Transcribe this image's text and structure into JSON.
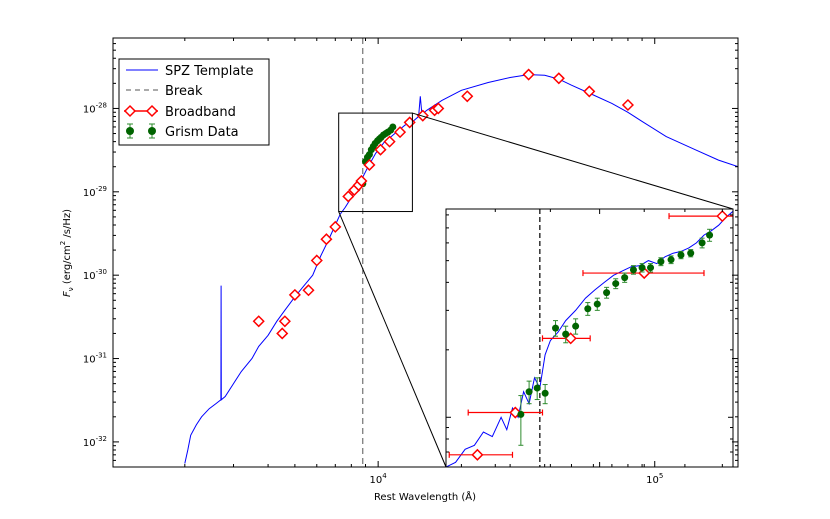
{
  "colors": {
    "template": "#0000ff",
    "broadband": "#ff0000",
    "grism_fill": "#006400",
    "grism_err": "#2e8b2e",
    "break": "#555555",
    "frame": "#000000"
  },
  "chart_data": {
    "type": "scatter",
    "title": "",
    "xlabel": "Rest Wavelength (Å)",
    "ylabel_parts": {
      "pre": "F",
      "sub": "ν",
      "mid": " (erg/cm",
      "sup": "2",
      "post": " /s/Hz)"
    },
    "xscale": "log",
    "yscale": "log",
    "xlim": [
      1100,
      200000
    ],
    "ylim": [
      5e-33,
      7e-28
    ],
    "x_ticks": [
      {
        "value": 10000,
        "base": "10",
        "exp": "4"
      },
      {
        "value": 100000,
        "base": "10",
        "exp": "5"
      }
    ],
    "y_ticks": [
      {
        "value": 1e-32,
        "base": "10",
        "exp": "-32"
      },
      {
        "value": 1e-31,
        "base": "10",
        "exp": "-31"
      },
      {
        "value": 1e-30,
        "base": "10",
        "exp": "-30"
      },
      {
        "value": 1e-29,
        "base": "10",
        "exp": "-29"
      },
      {
        "value": 1e-28,
        "base": "10",
        "exp": "-28"
      }
    ],
    "legend": {
      "position": "top-left",
      "entries": [
        {
          "label": "SPZ Template",
          "style": "line"
        },
        {
          "label": "Break",
          "style": "dashed"
        },
        {
          "label": "Broadband",
          "style": "diamond-errorbar"
        },
        {
          "label": "Grism Data",
          "style": "circle-errorbar"
        }
      ]
    },
    "break_wavelength": 8800,
    "series": [
      {
        "name": "SPZ Template",
        "kind": "line",
        "x": [
          2000,
          2050,
          2100,
          2200,
          2300,
          2450,
          2600,
          2700,
          2705,
          2710,
          2800,
          3000,
          3200,
          3500,
          3700,
          4000,
          4300,
          4600,
          5000,
          5400,
          5800,
          6200,
          6600,
          7000,
          7300,
          7600,
          8000,
          8400,
          8800,
          9200,
          9800,
          10500,
          11500,
          12500,
          13500,
          14000,
          14200,
          14400,
          15000,
          17000,
          20000,
          25000,
          30000,
          35000,
          40000,
          45000,
          50000,
          60000,
          70000,
          80000,
          90000,
          110000,
          140000,
          170000,
          200000
        ],
        "y": [
          5.5e-33,
          8e-33,
          1.2e-32,
          1.6e-32,
          2e-32,
          2.5e-32,
          2.9e-32,
          3.2e-32,
          7.5e-31,
          3.2e-32,
          3.5e-32,
          5e-32,
          7e-32,
          1e-31,
          1.4e-31,
          1.9e-31,
          2.8e-31,
          3.8e-31,
          5.5e-31,
          7.5e-31,
          1e-30,
          1.7e-30,
          2.6e-30,
          4e-30,
          5.4e-30,
          6.5e-30,
          8.5e-30,
          1.15e-29,
          1.5e-29,
          2e-29,
          2.9e-29,
          3.9e-29,
          5e-29,
          6.3e-29,
          7.2e-29,
          8e-29,
          1.4e-28,
          8.5e-29,
          9.5e-29,
          1.25e-28,
          1.65e-28,
          2.05e-28,
          2.35e-28,
          2.55e-28,
          2.5e-28,
          2.25e-28,
          1.9e-28,
          1.45e-28,
          1.15e-28,
          9e-29,
          7e-29,
          4.6e-29,
          3.2e-29,
          2.4e-29,
          2e-29
        ]
      },
      {
        "name": "Broadband",
        "kind": "diamond",
        "x": [
          3700,
          4500,
          4600,
          5000,
          5600,
          6000,
          6500,
          7000,
          7800,
          8200,
          8500,
          8700,
          9300,
          10200,
          11000,
          12000,
          13000,
          14500,
          16000,
          16500,
          21000,
          35000,
          45000,
          58000,
          80000
        ],
        "y": [
          2.8e-31,
          2e-31,
          2.8e-31,
          5.8e-31,
          6.6e-31,
          1.5e-30,
          2.7e-30,
          3.8e-30,
          8.8e-30,
          1.05e-29,
          1.2e-29,
          1.35e-29,
          2.1e-29,
          3.2e-29,
          4e-29,
          5.2e-29,
          6.8e-29,
          8.2e-29,
          9.5e-29,
          1e-28,
          1.4e-28,
          2.55e-28,
          2.3e-28,
          1.6e-28,
          1.1e-28
        ]
      },
      {
        "name": "Grism Data",
        "kind": "circle",
        "x": [
          8400,
          8600,
          8800,
          9000,
          9150,
          9300,
          9450,
          9600,
          9750,
          9950,
          10100,
          10250,
          10450,
          10650,
          10850,
          11100,
          11300
        ],
        "y": [
          1.1e-29,
          1.3e-29,
          1.25e-29,
          2.3e-29,
          2.6e-29,
          2.8e-29,
          3.2e-29,
          3.5e-29,
          3.8e-29,
          4.1e-29,
          4.3e-29,
          4.5e-29,
          4.8e-29,
          5e-29,
          5.2e-29,
          5.5e-29,
          6e-29
        ]
      }
    ],
    "inset": {
      "source_xlim": [
        7200,
        13300
      ],
      "source_ylim": [
        5.8e-30,
        8.8e-29
      ],
      "xlim": [
        7200,
        13300
      ],
      "ylim": [
        6e-30,
        8.5e-29
      ],
      "template": {
        "x": [
          7200,
          7350,
          7500,
          7650,
          7800,
          7950,
          8100,
          8200,
          8300,
          8400,
          8500,
          8600,
          8700,
          8800,
          8900,
          9000,
          9150,
          9300,
          9500,
          9700,
          9900,
          10100,
          10300,
          10500,
          10700,
          10900,
          11100,
          11300,
          11500,
          11700,
          11900,
          12100,
          12300,
          12500,
          12700,
          12900,
          13100,
          13300
        ],
        "y": [
          6e-30,
          6.3e-30,
          7.2e-30,
          7.5e-30,
          8.6e-30,
          8.2e-30,
          1e-29,
          8.8e-30,
          1.1e-29,
          1e-29,
          1.3e-29,
          1.15e-29,
          1.5e-29,
          1.35e-29,
          1.9e-29,
          2.2e-29,
          2.4e-29,
          2.7e-29,
          3e-29,
          3.4e-29,
          3.7e-29,
          4e-29,
          4.3e-29,
          4.5e-29,
          4.7e-29,
          4.75e-29,
          5e-29,
          4.85e-29,
          5.2e-29,
          5.4e-29,
          5.5e-29,
          5.7e-29,
          6e-29,
          6.5e-29,
          6.8e-29,
          7.2e-29,
          7.8e-29,
          8.3e-29
        ]
      },
      "broadband": [
        {
          "x": 7700,
          "y": 6.8e-30,
          "xerr": [
            7250,
            8300
          ]
        },
        {
          "x": 8350,
          "y": 1.05e-29,
          "xerr": [
            7550,
            8850
          ]
        },
        {
          "x": 9400,
          "y": 2.25e-29,
          "xerr": [
            8850,
            9800
          ]
        },
        {
          "x": 11000,
          "y": 4.4e-29,
          "xerr": [
            9650,
            12500
          ]
        },
        {
          "x": 13000,
          "y": 7.9e-29,
          "xerr": [
            11600,
            13300
          ]
        }
      ],
      "grism": [
        {
          "x": 8450,
          "y": 1.03e-29,
          "yerr": [
            7.5e-30,
            1.25e-29
          ]
        },
        {
          "x": 8600,
          "y": 1.3e-29,
          "yerr": [
            1.15e-29,
            1.45e-29
          ]
        },
        {
          "x": 8750,
          "y": 1.35e-29,
          "yerr": [
            1.2e-29,
            1.5e-29
          ]
        },
        {
          "x": 8900,
          "y": 1.28e-29,
          "yerr": [
            1.15e-29,
            1.4e-29
          ]
        },
        {
          "x": 9100,
          "y": 2.5e-29,
          "yerr": [
            2.3e-29,
            2.7e-29
          ]
        },
        {
          "x": 9300,
          "y": 2.35e-29,
          "yerr": [
            2.15e-29,
            2.55e-29
          ]
        },
        {
          "x": 9500,
          "y": 2.55e-29,
          "yerr": [
            2.35e-29,
            2.75e-29
          ]
        },
        {
          "x": 9750,
          "y": 3.05e-29,
          "yerr": [
            2.85e-29,
            3.25e-29
          ]
        },
        {
          "x": 9950,
          "y": 3.2e-29,
          "yerr": [
            3e-29,
            3.4e-29
          ]
        },
        {
          "x": 10150,
          "y": 3.6e-29,
          "yerr": [
            3.4e-29,
            3.8e-29
          ]
        },
        {
          "x": 10350,
          "y": 3.95e-29,
          "yerr": [
            3.75e-29,
            4.15e-29
          ]
        },
        {
          "x": 10550,
          "y": 4.2e-29,
          "yerr": [
            4e-29,
            4.4e-29
          ]
        },
        {
          "x": 10750,
          "y": 4.55e-29,
          "yerr": [
            4.35e-29,
            4.75e-29
          ]
        },
        {
          "x": 10950,
          "y": 4.65e-29,
          "yerr": [
            4.45e-29,
            4.85e-29
          ]
        },
        {
          "x": 11150,
          "y": 4.65e-29,
          "yerr": [
            4.45e-29,
            4.85e-29
          ]
        },
        {
          "x": 11400,
          "y": 4.95e-29,
          "yerr": [
            4.75e-29,
            5.15e-29
          ]
        },
        {
          "x": 11650,
          "y": 5.05e-29,
          "yerr": [
            4.85e-29,
            5.25e-29
          ]
        },
        {
          "x": 11900,
          "y": 5.3e-29,
          "yerr": [
            5.1e-29,
            5.5e-29
          ]
        },
        {
          "x": 12150,
          "y": 5.4e-29,
          "yerr": [
            5.2e-29,
            5.6e-29
          ]
        },
        {
          "x": 12450,
          "y": 6e-29,
          "yerr": [
            5.7e-29,
            6.3e-29
          ]
        },
        {
          "x": 12650,
          "y": 6.5e-29,
          "yerr": [
            6.1e-29,
            6.9e-29
          ]
        }
      ]
    }
  }
}
